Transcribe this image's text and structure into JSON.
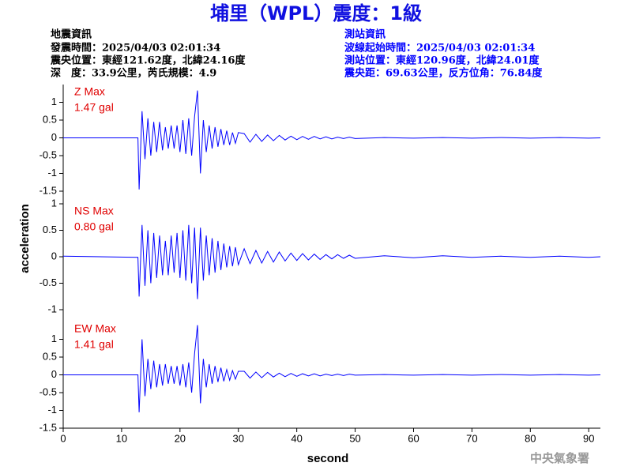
{
  "header": {
    "title": "埔里（WPL）震度：1級",
    "quake_info": [
      "地震資訊",
      "發震時間：2025/04/03 02:01:34",
      "震央位置：東經121.62度，北緯24.16度",
      "深　度：33.9公里，芮氏規模：4.9"
    ],
    "station_info": [
      "測站資訊",
      "波線起始時間：2025/04/03 02:01:34",
      "測站位置：東經120.96度，北緯24.01度",
      "震央距：69.63公里，反方位角：76.84度"
    ]
  },
  "footer": "中央氣象署",
  "chart_data": {
    "type": "line",
    "xlabel": "second",
    "ylabel": "acceleration",
    "xlim": [
      0,
      92
    ],
    "xticks": [
      0,
      10,
      20,
      30,
      40,
      50,
      60,
      70,
      80,
      90
    ],
    "x": [
      0,
      12.8,
      13,
      13.5,
      14,
      14.5,
      15,
      15.5,
      16,
      16.5,
      17,
      17.5,
      18,
      18.5,
      19,
      19.5,
      20,
      20.5,
      21,
      21.5,
      22,
      22.5,
      23,
      23.5,
      24,
      24.5,
      25,
      25.5,
      26,
      26.5,
      27,
      27.5,
      28,
      28.5,
      29,
      29.5,
      30,
      31,
      32,
      33,
      34,
      35,
      36,
      37,
      38,
      39,
      40,
      41,
      42,
      43,
      44,
      45,
      46,
      47,
      48,
      49,
      50,
      55,
      60,
      65,
      70,
      75,
      80,
      85,
      90,
      92
    ],
    "series": [
      {
        "name": "Z Max",
        "max_label": "1.47 gal",
        "color": "#0000ff",
        "ylim": [
          -1.5,
          1.5
        ],
        "yticks": [
          -1.5,
          -1,
          -0.5,
          0,
          0.5,
          1
        ],
        "values": [
          0,
          0,
          -1.45,
          0.75,
          -0.6,
          0.55,
          -0.5,
          0.45,
          -0.4,
          0.45,
          -0.35,
          0.3,
          -0.3,
          0.35,
          -0.3,
          0.35,
          -0.4,
          0.5,
          -0.45,
          0.55,
          -0.5,
          0.6,
          1.33,
          -1.0,
          0.5,
          -0.4,
          0.35,
          -0.3,
          0.3,
          -0.25,
          0.25,
          -0.2,
          0.2,
          -0.2,
          0.15,
          -0.15,
          0.15,
          0.12,
          -0.12,
          0.1,
          -0.1,
          0.08,
          -0.08,
          0.07,
          -0.06,
          0.05,
          -0.05,
          0.04,
          -0.04,
          0.04,
          -0.03,
          0.03,
          -0.03,
          0.02,
          -0.02,
          0.02,
          -0.02,
          0.01,
          -0.01,
          0.01,
          -0.01,
          0.01,
          -0.01,
          0.01,
          -0.01,
          0
        ]
      },
      {
        "name": "NS Max",
        "max_label": "0.80 gal",
        "color": "#0000ff",
        "ylim": [
          -1,
          1
        ],
        "yticks": [
          -1,
          -0.5,
          0,
          0.5,
          1
        ],
        "values": [
          0.01,
          -0.01,
          -0.75,
          0.6,
          -0.55,
          0.5,
          -0.5,
          0.45,
          -0.4,
          0.4,
          -0.35,
          0.3,
          -0.35,
          0.4,
          -0.3,
          0.45,
          -0.4,
          0.5,
          -0.45,
          0.6,
          -0.5,
          0.55,
          -0.8,
          0.55,
          -0.45,
          0.4,
          -0.35,
          0.35,
          -0.3,
          0.3,
          -0.25,
          0.25,
          -0.2,
          0.2,
          -0.18,
          0.18,
          -0.15,
          0.15,
          -0.13,
          0.12,
          -0.12,
          0.1,
          -0.1,
          0.09,
          -0.08,
          0.07,
          -0.07,
          0.06,
          -0.06,
          0.05,
          -0.05,
          0.04,
          -0.04,
          0.04,
          -0.03,
          0.03,
          -0.03,
          0.02,
          -0.02,
          0.02,
          -0.01,
          0.01,
          -0.01,
          0.01,
          -0.01,
          0
        ]
      },
      {
        "name": "EW Max",
        "max_label": "1.41 gal",
        "color": "#0000ff",
        "ylim": [
          -1.5,
          1.5
        ],
        "yticks": [
          -1.5,
          -1,
          -0.5,
          0,
          0.5,
          1
        ],
        "values": [
          0,
          0,
          -1.05,
          1.0,
          -0.6,
          0.45,
          -0.4,
          0.4,
          -0.35,
          0.3,
          -0.3,
          0.3,
          -0.25,
          0.25,
          -0.25,
          0.25,
          -0.3,
          0.3,
          -0.35,
          0.35,
          -0.5,
          0.6,
          1.4,
          -0.8,
          0.45,
          -0.35,
          0.3,
          -0.25,
          0.25,
          -0.2,
          0.2,
          -0.18,
          0.15,
          -0.15,
          0.12,
          -0.12,
          0.1,
          0.1,
          -0.09,
          0.08,
          -0.08,
          0.07,
          -0.06,
          0.05,
          -0.05,
          0.04,
          -0.04,
          0.03,
          -0.03,
          0.03,
          -0.03,
          0.02,
          -0.02,
          0.02,
          -0.02,
          0.02,
          -0.01,
          0.01,
          -0.01,
          0.01,
          -0.01,
          0.01,
          -0.01,
          0.01,
          -0.01,
          0
        ]
      }
    ]
  }
}
